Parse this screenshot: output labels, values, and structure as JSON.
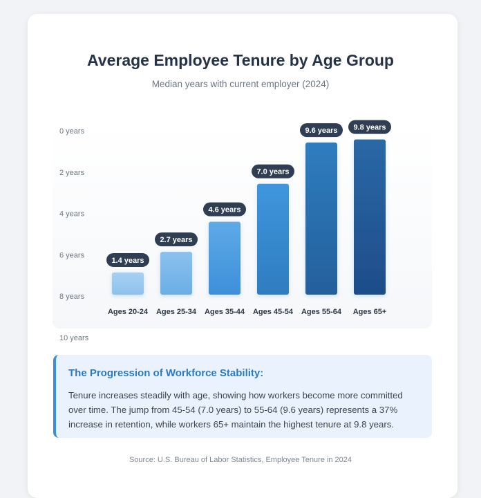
{
  "page": {
    "title": "Average Employee Tenure by Age Group",
    "subtitle": "Median years with current employer (2024)",
    "source": "Source: U.S. Bureau of Labor Statistics, Employee Tenure in 2024"
  },
  "insight": {
    "title": "The Progression of Workforce Stability:",
    "text": "Tenure increases steadily with age, showing how workers become more committed over time. The jump from 45-54 (7.0 years) to 55-64 (9.6 years) represents a 37% increase in retention, while workers 65+ maintain the highest tenure at 9.8 years."
  },
  "chart_data": {
    "type": "bar",
    "title": "Average Employee Tenure by Age Group",
    "subtitle": "Median years with current employer (2024)",
    "categories": [
      "Ages 20-24",
      "Ages 25-34",
      "Ages 35-44",
      "Ages 45-54",
      "Ages 55-64",
      "Ages 65+"
    ],
    "values": [
      1.4,
      2.7,
      4.6,
      7.0,
      9.6,
      9.8
    ],
    "data_labels": [
      "1.4 years",
      "2.7 years",
      "4.6 years",
      "7.0 years",
      "9.6 years",
      "9.8 years"
    ],
    "y_ticks": [
      "0 years",
      "2 years",
      "4 years",
      "6 years",
      "8 years",
      "10 years"
    ],
    "y_tick_values": [
      0,
      2,
      4,
      6,
      8,
      10
    ],
    "ylim": [
      0,
      10
    ],
    "grid": false,
    "legend": "none",
    "colors": {
      "bar_light_top": "#a8d0f2",
      "bar_light_bottom": "#87bdea",
      "bar_mid_top": "#5ba9e8",
      "bar_mid_bottom": "#3d8fd9",
      "bar_dark_top": "#2a6fad",
      "bar_dark_bottom": "#1e4f8e",
      "label_pill": "#2f3e53"
    }
  }
}
